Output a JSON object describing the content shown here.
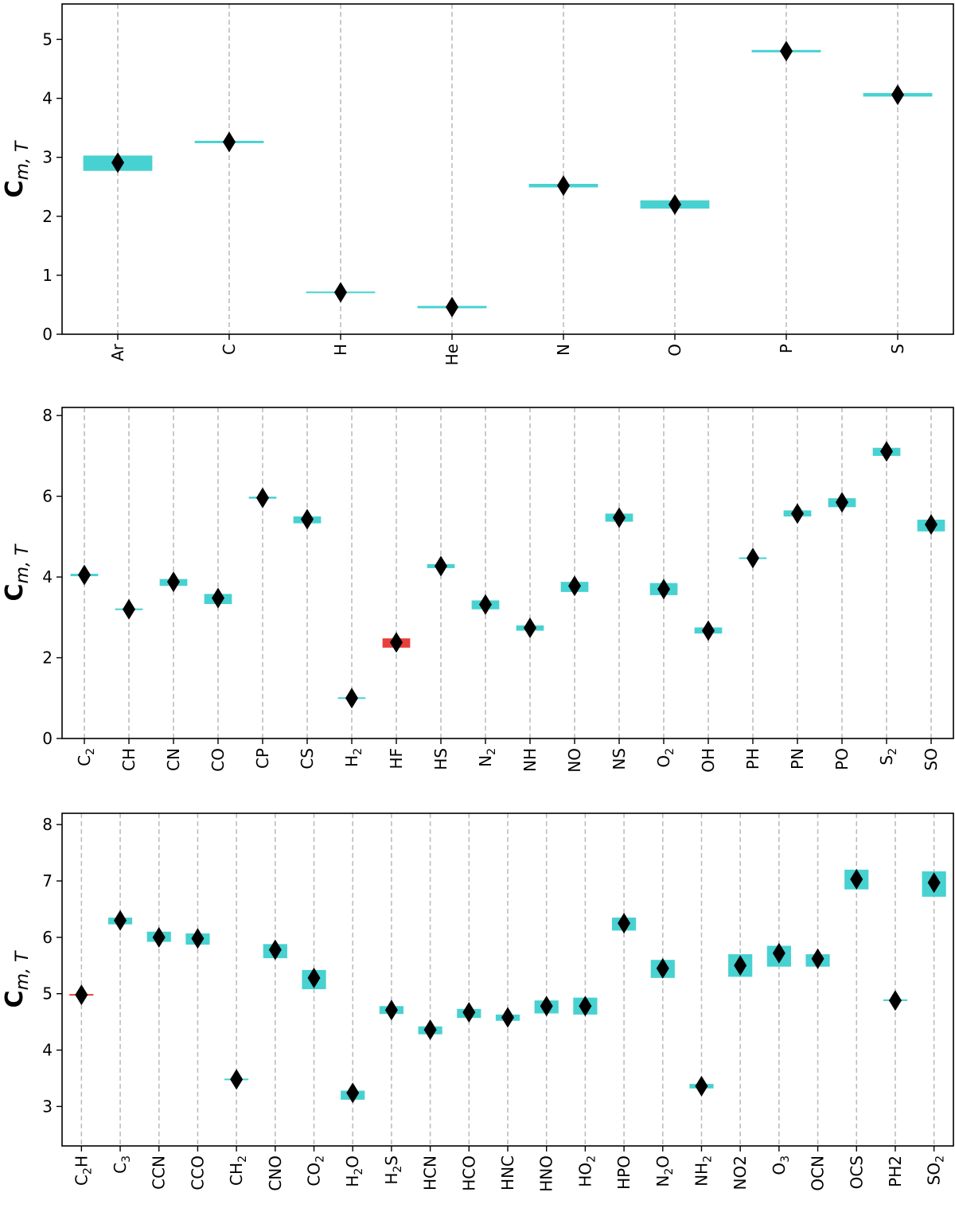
{
  "colors": {
    "band": "#48d1d1",
    "band_alt": "#e8403a",
    "marker": "#000000",
    "grid": "#bdbdbd",
    "axis": "#000000"
  },
  "chart_data": [
    {
      "type": "range-marker",
      "ylabel": "C",
      "ylabel_sub": "m, T",
      "ylim": [
        0,
        5.6
      ],
      "yticks": [
        0,
        1,
        2,
        3,
        4,
        5
      ],
      "grid_x": true,
      "categories": [
        {
          "label": "Ar",
          "sub": ""
        },
        {
          "label": "C",
          "sub": ""
        },
        {
          "label": "H",
          "sub": ""
        },
        {
          "label": "He",
          "sub": ""
        },
        {
          "label": "N",
          "sub": ""
        },
        {
          "label": "O",
          "sub": ""
        },
        {
          "label": "P",
          "sub": ""
        },
        {
          "label": "S",
          "sub": ""
        }
      ],
      "values": [
        2.91,
        3.26,
        0.71,
        0.46,
        2.52,
        2.2,
        4.8,
        4.06
      ],
      "band_low": [
        2.77,
        3.24,
        0.7,
        0.44,
        2.49,
        2.13,
        4.78,
        4.03
      ],
      "band_high": [
        3.03,
        3.28,
        0.72,
        0.48,
        2.55,
        2.27,
        4.82,
        4.09
      ],
      "band_colors": [
        "#48d1d1",
        "#48d1d1",
        "#48d1d1",
        "#48d1d1",
        "#48d1d1",
        "#48d1d1",
        "#48d1d1",
        "#48d1d1"
      ]
    },
    {
      "type": "range-marker",
      "ylabel": "C",
      "ylabel_sub": "m, T",
      "ylim": [
        0,
        8.2
      ],
      "yticks": [
        0,
        2,
        4,
        6,
        8
      ],
      "grid_x": true,
      "categories": [
        {
          "label": "C",
          "sub": "2"
        },
        {
          "label": "CH",
          "sub": ""
        },
        {
          "label": "CN",
          "sub": ""
        },
        {
          "label": "CO",
          "sub": ""
        },
        {
          "label": "CP",
          "sub": ""
        },
        {
          "label": "CS",
          "sub": ""
        },
        {
          "label": "H",
          "sub": "2"
        },
        {
          "label": "HF",
          "sub": ""
        },
        {
          "label": "HS",
          "sub": ""
        },
        {
          "label": "N",
          "sub": "2"
        },
        {
          "label": "NH",
          "sub": ""
        },
        {
          "label": "NO",
          "sub": ""
        },
        {
          "label": "NS",
          "sub": ""
        },
        {
          "label": "O",
          "sub": "2"
        },
        {
          "label": "OH",
          "sub": ""
        },
        {
          "label": "PH",
          "sub": ""
        },
        {
          "label": "PN",
          "sub": ""
        },
        {
          "label": "PO",
          "sub": ""
        },
        {
          "label": "S",
          "sub": "2"
        },
        {
          "label": "SO",
          "sub": ""
        }
      ],
      "values": [
        4.05,
        3.2,
        3.88,
        3.48,
        5.96,
        5.43,
        1.0,
        2.38,
        4.27,
        3.32,
        2.74,
        3.78,
        5.47,
        3.7,
        2.67,
        4.47,
        5.57,
        5.85,
        7.11,
        5.3
      ],
      "band_low": [
        4.02,
        3.19,
        3.78,
        3.33,
        5.94,
        5.33,
        1.0,
        2.25,
        4.22,
        3.2,
        2.67,
        3.63,
        5.37,
        3.55,
        2.6,
        4.45,
        5.5,
        5.73,
        7.0,
        5.13
      ],
      "band_high": [
        4.08,
        3.21,
        3.95,
        3.58,
        5.99,
        5.5,
        1.0,
        2.48,
        4.32,
        3.42,
        2.8,
        3.88,
        5.57,
        3.85,
        2.75,
        4.48,
        5.65,
        5.95,
        7.2,
        5.42
      ],
      "band_colors": [
        "#48d1d1",
        "#48d1d1",
        "#48d1d1",
        "#48d1d1",
        "#48d1d1",
        "#48d1d1",
        "#48d1d1",
        "#e8403a",
        "#48d1d1",
        "#48d1d1",
        "#48d1d1",
        "#48d1d1",
        "#48d1d1",
        "#48d1d1",
        "#48d1d1",
        "#48d1d1",
        "#48d1d1",
        "#48d1d1",
        "#48d1d1",
        "#48d1d1"
      ]
    },
    {
      "type": "range-marker",
      "ylabel": "C",
      "ylabel_sub": "m, T",
      "ylim": [
        2.3,
        8.2
      ],
      "yticks": [
        3,
        4,
        5,
        6,
        7,
        8
      ],
      "grid_x": true,
      "categories": [
        {
          "label": "C",
          "sub": "2",
          "tail": "H"
        },
        {
          "label": "C",
          "sub": "3"
        },
        {
          "label": "CCN",
          "sub": ""
        },
        {
          "label": "CCO",
          "sub": ""
        },
        {
          "label": "CH",
          "sub": "2"
        },
        {
          "label": "CNO",
          "sub": ""
        },
        {
          "label": "CO",
          "sub": "2"
        },
        {
          "label": "H",
          "sub": "2",
          "tail": "O"
        },
        {
          "label": "H",
          "sub": "2",
          "tail": "S"
        },
        {
          "label": "HCN",
          "sub": ""
        },
        {
          "label": "HCO",
          "sub": ""
        },
        {
          "label": "HNC",
          "sub": ""
        },
        {
          "label": "HNO",
          "sub": ""
        },
        {
          "label": "HO",
          "sub": "2"
        },
        {
          "label": "HPO",
          "sub": ""
        },
        {
          "label": "N",
          "sub": "2",
          "tail": "O"
        },
        {
          "label": "NH",
          "sub": "2"
        },
        {
          "label": "NO2",
          "sub": ""
        },
        {
          "label": "O",
          "sub": "3"
        },
        {
          "label": "OCN",
          "sub": ""
        },
        {
          "label": "OCS",
          "sub": ""
        },
        {
          "label": "PH2",
          "sub": ""
        },
        {
          "label": "SO",
          "sub": "2"
        }
      ],
      "values": [
        4.98,
        6.3,
        6.0,
        5.98,
        3.48,
        5.78,
        5.28,
        3.24,
        4.71,
        4.36,
        4.67,
        4.58,
        4.78,
        4.78,
        6.25,
        5.45,
        3.36,
        5.5,
        5.72,
        5.62,
        7.03,
        4.88,
        6.97
      ],
      "band_low": [
        4.97,
        6.23,
        5.92,
        5.87,
        3.47,
        5.63,
        5.08,
        3.12,
        4.64,
        4.28,
        4.57,
        4.52,
        4.65,
        4.63,
        6.12,
        5.28,
        3.32,
        5.3,
        5.48,
        5.48,
        6.85,
        4.87,
        6.72
      ],
      "band_high": [
        4.99,
        6.35,
        6.1,
        6.07,
        3.49,
        5.88,
        5.42,
        3.28,
        4.78,
        4.42,
        4.73,
        4.63,
        4.88,
        4.93,
        6.35,
        5.6,
        3.4,
        5.7,
        5.85,
        5.7,
        7.2,
        4.9,
        7.17
      ],
      "band_colors": [
        "#e8403a",
        "#48d1d1",
        "#48d1d1",
        "#48d1d1",
        "#48d1d1",
        "#48d1d1",
        "#48d1d1",
        "#48d1d1",
        "#48d1d1",
        "#48d1d1",
        "#48d1d1",
        "#48d1d1",
        "#48d1d1",
        "#48d1d1",
        "#48d1d1",
        "#48d1d1",
        "#48d1d1",
        "#48d1d1",
        "#48d1d1",
        "#48d1d1",
        "#48d1d1",
        "#48d1d1",
        "#48d1d1"
      ]
    }
  ]
}
